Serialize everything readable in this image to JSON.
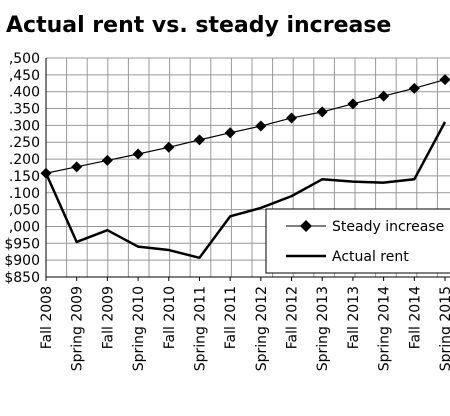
{
  "chart_data": {
    "type": "line",
    "title": "Actual rent vs. steady increase",
    "xlabel": "",
    "ylabel": "",
    "categories": [
      "Fall 2008",
      "Spring 2009",
      "Fall 2009",
      "Spring 2010",
      "Fall 2010",
      "Spring 2011",
      "Fall 2011",
      "Spring 2012",
      "Fall 2012",
      "Spring 2013",
      "Fall 2013",
      "Spring 2014",
      "Fall 2014",
      "Spring 2015"
    ],
    "y_tick_labels": [
      ",500",
      ",450",
      ".400",
      ".350",
      ".300",
      ".250",
      ".200",
      ".150",
      ".100",
      ",050",
      ",000",
      "$950",
      "$900",
      "$850"
    ],
    "ylim": [
      850,
      1500
    ],
    "grid": true,
    "legend_position": "bottom-right",
    "series": [
      {
        "name": "Steady increase",
        "marker": "diamond",
        "values": [
          1158,
          1177,
          1196,
          1215,
          1235,
          1257,
          1278,
          1298,
          1322,
          1340,
          1364,
          1387,
          1410,
          1436
        ]
      },
      {
        "name": "Actual rent",
        "marker": "none",
        "values": [
          1158,
          954,
          989,
          940,
          930,
          907,
          1030,
          1055,
          1090,
          1140,
          1133,
          1130,
          1140,
          1310
        ]
      }
    ]
  },
  "colors": {
    "series_line": "#000000",
    "grid": "#999999",
    "plot_bg": "#ffffff"
  }
}
